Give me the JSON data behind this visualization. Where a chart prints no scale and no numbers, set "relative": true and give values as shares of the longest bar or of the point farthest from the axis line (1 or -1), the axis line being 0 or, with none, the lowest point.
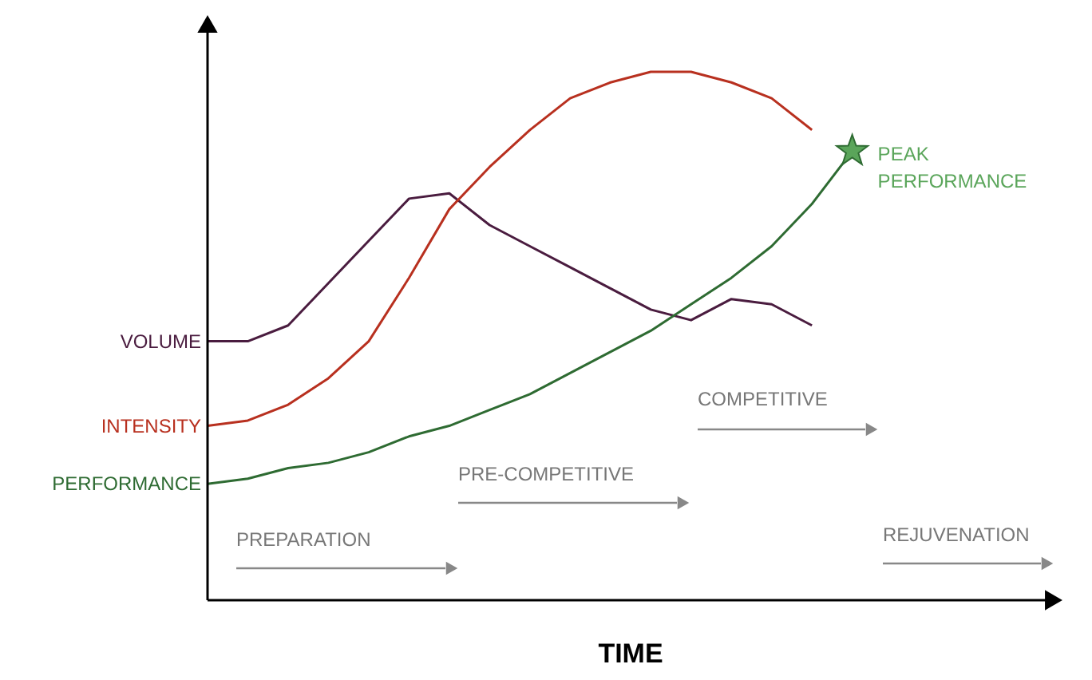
{
  "chart_data": {
    "type": "line",
    "relative": true,
    "xlabel": "TIME",
    "legend": false,
    "line_style": "solid",
    "marker": "none",
    "categories": [
      null,
      null,
      null,
      null,
      null,
      null,
      null,
      null,
      null,
      null,
      null,
      null,
      null,
      null,
      null,
      null,
      null,
      null,
      null,
      null,
      null,
      null
    ],
    "series": [
      {
        "name": "VOLUME",
        "color": "#4a1c3f",
        "values": [
          0.49,
          0.49,
          0.52,
          0.6,
          0.68,
          0.76,
          0.77,
          0.71,
          0.67,
          0.63,
          0.59,
          0.55,
          0.53,
          0.57,
          0.56,
          0.52,
          null,
          null,
          null,
          null,
          null,
          null
        ]
      },
      {
        "name": "INTENSITY",
        "color": "#b8301f",
        "values": [
          0.33,
          0.34,
          0.37,
          0.42,
          0.49,
          0.61,
          0.74,
          0.82,
          0.89,
          0.95,
          0.98,
          1.0,
          1.0,
          0.98,
          0.95,
          0.89,
          null,
          null,
          null,
          null,
          null,
          null
        ]
      },
      {
        "name": "PERFORMANCE",
        "color": "#2e6b32",
        "values": [
          0.22,
          0.23,
          0.25,
          0.26,
          0.28,
          0.31,
          0.33,
          0.36,
          0.39,
          0.43,
          0.47,
          0.51,
          0.56,
          0.61,
          0.67,
          0.75,
          0.85,
          null,
          null,
          null,
          null,
          null
        ]
      }
    ],
    "annotations": [
      "PREPARATION",
      "PRE-COMPETITIVE",
      "COMPETITIVE",
      "REJUVENATION",
      "PEAK PERFORMANCE"
    ]
  }
}
